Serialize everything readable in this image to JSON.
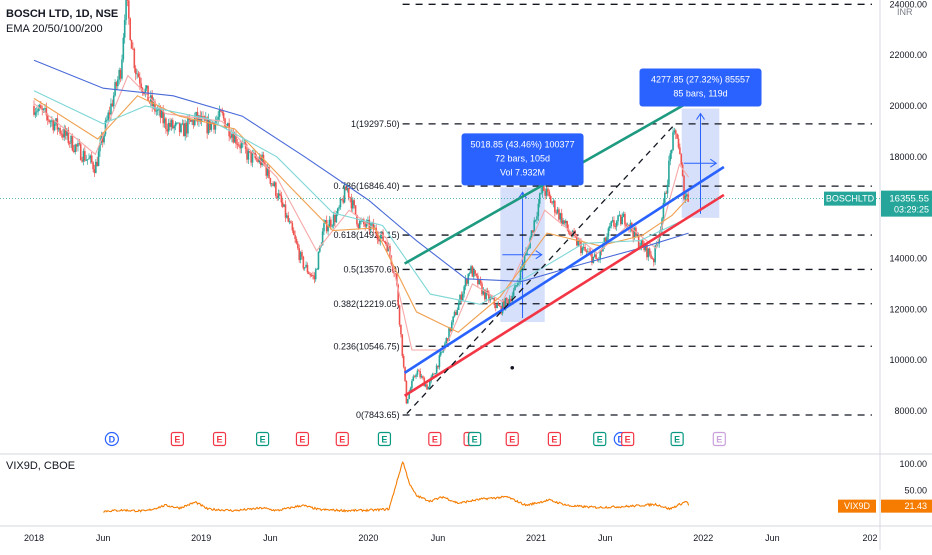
{
  "header": {
    "symbol_line": "BOSCH LTD, 1D, NSE",
    "ema_line": "EMA 20/50/100/200",
    "vix_line": "VIX9D, CBOE",
    "currency": "INR"
  },
  "colors": {
    "candle_up": "#26a69a",
    "candle_down": "#ef5350",
    "ema20": "#f7a8a8",
    "ema50": "#f0a050",
    "ema100": "#7fd6d6",
    "ema200": "#4a6ad8",
    "channel_upper": "#1d9a80",
    "channel_mid": "#2962ff",
    "channel_lower": "#f23645",
    "vix_line": "#f57c00",
    "measure_box": "#c8d6fa",
    "callout": "#2962ff"
  },
  "chart_data": [
    {
      "type": "line",
      "name": "price-panel",
      "title": "BOSCH LTD, 1D, NSE",
      "ylim": [
        7500,
        24000
      ],
      "y_ticks": [
        8000,
        10000,
        12000,
        14000,
        16000,
        18000,
        20000,
        22000,
        24000
      ],
      "y_tick_labels": [
        "8000.00",
        "10000.00",
        "12000.00",
        "14000.00",
        "16000.00",
        "18000.00",
        "20000.00",
        "22000.00",
        "24000.00"
      ],
      "x_range": [
        "2018-01-01",
        "2022-12-31"
      ],
      "x_ticks": [
        {
          "date": "2018-01-01",
          "label": "2018"
        },
        {
          "date": "2018-06-01",
          "label": "Jun"
        },
        {
          "date": "2019-01-01",
          "label": "2019"
        },
        {
          "date": "2019-06-01",
          "label": "Jun"
        },
        {
          "date": "2020-01-01",
          "label": "2020"
        },
        {
          "date": "2020-06-01",
          "label": "Jun"
        },
        {
          "date": "2021-01-01",
          "label": "2021"
        },
        {
          "date": "2021-06-01",
          "label": "Jun"
        },
        {
          "date": "2022-01-01",
          "label": "2022"
        },
        {
          "date": "2022-06-01",
          "label": "Jun"
        },
        {
          "date": "2022-12-31",
          "label": "202"
        }
      ],
      "price_path": [
        [
          "2018-01-01",
          20000
        ],
        [
          "2018-02-15",
          19300
        ],
        [
          "2018-04-01",
          18400
        ],
        [
          "2018-05-15",
          17600
        ],
        [
          "2018-06-15",
          19800
        ],
        [
          "2018-07-10",
          21500
        ],
        [
          "2018-07-20",
          24300
        ],
        [
          "2018-08-10",
          21500
        ],
        [
          "2018-09-10",
          20200
        ],
        [
          "2018-10-15",
          19300
        ],
        [
          "2018-11-20",
          19000
        ],
        [
          "2018-12-20",
          19500
        ],
        [
          "2019-01-15",
          19200
        ],
        [
          "2019-02-15",
          19600
        ],
        [
          "2019-03-15",
          18800
        ],
        [
          "2019-04-15",
          18000
        ],
        [
          "2019-05-15",
          17800
        ],
        [
          "2019-06-15",
          16600
        ],
        [
          "2019-07-15",
          15200
        ],
        [
          "2019-08-10",
          13800
        ],
        [
          "2019-09-05",
          13200
        ],
        [
          "2019-09-25",
          15200
        ],
        [
          "2019-10-25",
          15700
        ],
        [
          "2019-11-15",
          16800
        ],
        [
          "2019-12-10",
          15400
        ],
        [
          "2020-01-10",
          15200
        ],
        [
          "2020-02-10",
          14600
        ],
        [
          "2020-03-01",
          13300
        ],
        [
          "2020-03-24",
          8400
        ],
        [
          "2020-04-15",
          9600
        ],
        [
          "2020-05-10",
          8900
        ],
        [
          "2020-06-10",
          10300
        ],
        [
          "2020-07-10",
          11900
        ],
        [
          "2020-08-10",
          13600
        ],
        [
          "2020-09-10",
          12600
        ],
        [
          "2020-10-15",
          12000
        ],
        [
          "2020-11-15",
          12700
        ],
        [
          "2020-12-15",
          14500
        ],
        [
          "2021-01-15",
          16800
        ],
        [
          "2021-02-15",
          15900
        ],
        [
          "2021-03-15",
          15000
        ],
        [
          "2021-04-15",
          14300
        ],
        [
          "2021-05-15",
          13900
        ],
        [
          "2021-06-15",
          15300
        ],
        [
          "2021-07-15",
          15600
        ],
        [
          "2021-08-15",
          14600
        ],
        [
          "2021-09-15",
          14000
        ],
        [
          "2021-10-05",
          15800
        ],
        [
          "2021-10-25",
          18600
        ],
        [
          "2021-11-05",
          18900
        ],
        [
          "2021-11-20",
          16600
        ],
        [
          "2021-11-30",
          16355.55
        ]
      ],
      "ema_lines": [
        {
          "name": "EMA 20",
          "color_key": "ema20",
          "points": [
            [
              "2018-01-01",
              20100
            ],
            [
              "2018-05-15",
              18100
            ],
            [
              "2018-07-25",
              21200
            ],
            [
              "2018-10-15",
              19700
            ],
            [
              "2019-02-15",
              19400
            ],
            [
              "2019-06-15",
              17200
            ],
            [
              "2019-09-10",
              14300
            ],
            [
              "2019-11-20",
              15900
            ],
            [
              "2020-02-10",
              14800
            ],
            [
              "2020-04-05",
              10400
            ],
            [
              "2020-06-15",
              10400
            ],
            [
              "2020-08-15",
              13000
            ],
            [
              "2020-10-20",
              12300
            ],
            [
              "2021-01-20",
              15900
            ],
            [
              "2021-05-15",
              14200
            ],
            [
              "2021-07-20",
              15300
            ],
            [
              "2021-09-20",
              14400
            ],
            [
              "2021-11-10",
              17700
            ],
            [
              "2021-11-30",
              17200
            ]
          ]
        },
        {
          "name": "EMA 50",
          "color_key": "ema50",
          "points": [
            [
              "2018-01-01",
              20300
            ],
            [
              "2018-05-20",
              18700
            ],
            [
              "2018-08-15",
              20400
            ],
            [
              "2018-11-15",
              19600
            ],
            [
              "2019-03-15",
              19100
            ],
            [
              "2019-07-15",
              16800
            ],
            [
              "2019-10-15",
              15100
            ],
            [
              "2020-01-15",
              15200
            ],
            [
              "2020-04-15",
              11900
            ],
            [
              "2020-07-15",
              11100
            ],
            [
              "2020-10-15",
              12500
            ],
            [
              "2021-01-25",
              15000
            ],
            [
              "2021-05-20",
              14500
            ],
            [
              "2021-08-20",
              14900
            ],
            [
              "2021-10-25",
              15700
            ],
            [
              "2021-11-30",
              16400
            ]
          ]
        },
        {
          "name": "EMA 100",
          "color_key": "ema100",
          "points": [
            [
              "2018-01-01",
              20600
            ],
            [
              "2018-06-01",
              19300
            ],
            [
              "2018-09-01",
              20000
            ],
            [
              "2019-01-15",
              19500
            ],
            [
              "2019-06-15",
              18000
            ],
            [
              "2019-10-15",
              15800
            ],
            [
              "2020-02-01",
              15300
            ],
            [
              "2020-05-15",
              12600
            ],
            [
              "2020-09-01",
              12200
            ],
            [
              "2020-12-15",
              13300
            ],
            [
              "2021-04-15",
              14600
            ],
            [
              "2021-08-15",
              14700
            ],
            [
              "2021-11-30",
              15600
            ]
          ]
        },
        {
          "name": "EMA 200",
          "color_key": "ema200",
          "points": [
            [
              "2018-01-01",
              21800
            ],
            [
              "2018-06-01",
              20700
            ],
            [
              "2018-11-01",
              20400
            ],
            [
              "2019-04-01",
              19600
            ],
            [
              "2019-08-15",
              18000
            ],
            [
              "2020-01-01",
              16300
            ],
            [
              "2020-04-15",
              14700
            ],
            [
              "2020-08-01",
              13200
            ],
            [
              "2020-12-01",
              13100
            ],
            [
              "2021-04-15",
              13800
            ],
            [
              "2021-08-15",
              14400
            ],
            [
              "2021-11-30",
              15000
            ]
          ]
        }
      ],
      "fib_levels": [
        {
          "label": "1(19297.50)",
          "value": 19297.5
        },
        {
          "label": "0.786(16846.40)",
          "value": 16846.4
        },
        {
          "label": "0.618(14922.15)",
          "value": 14922.15
        },
        {
          "label": "0.5(13570.60)",
          "value": 13570.6
        },
        {
          "label": "0.382(12219.05)",
          "value": 12219.05
        },
        {
          "label": "0.236(10546.75)",
          "value": 10546.75
        },
        {
          "label": "0(7843.65)",
          "value": 7843.65
        }
      ],
      "fib_extension_top_value": 24000,
      "fib_x_range": [
        "2020-03-20",
        "2022-12-31"
      ],
      "channel_lines": [
        {
          "name": "upper",
          "color_key": "channel_upper",
          "from": [
            "2020-03-20",
            13800
          ],
          "to": [
            "2021-12-15",
            20300
          ]
        },
        {
          "name": "middle",
          "color_key": "channel_mid",
          "from": [
            "2020-03-20",
            9500
          ],
          "to": [
            "2022-02-15",
            17600
          ]
        },
        {
          "name": "lower",
          "color_key": "channel_lower",
          "from": [
            "2020-03-20",
            8600
          ],
          "to": [
            "2022-02-15",
            16500
          ]
        }
      ],
      "trend_dashed": {
        "from": [
          "2020-03-25",
          7900
        ],
        "to": [
          "2021-11-01",
          19300
        ]
      },
      "measures": [
        {
          "from": [
            "2020-10-15",
            11500
          ],
          "to": [
            "2021-01-20",
            16800
          ],
          "text": [
            "5018.85 (43.46%) 100377",
            "72 bars, 105d",
            "Vol 7.932M"
          ]
        },
        {
          "from": [
            "2021-11-15",
            15600
          ],
          "to": [
            "2022-02-05",
            19900
          ],
          "text": [
            "4277.85 (27.32%) 85557",
            "85 bars, 119d"
          ]
        }
      ],
      "marker_dot": [
        "2020-11-10",
        9700
      ],
      "last_price": 16355.55,
      "last_price_label": "16355.55",
      "countdown": "03:29:25",
      "symbol_tag": "BOSCHLTD",
      "events": [
        {
          "date": "2018-06-20",
          "letter": "D"
        },
        {
          "date": "2018-11-10",
          "letter": "E"
        },
        {
          "date": "2019-02-10",
          "letter": "E"
        },
        {
          "date": "2019-05-15",
          "letter": "E"
        },
        {
          "date": "2019-08-10",
          "letter": "E"
        },
        {
          "date": "2019-11-05",
          "letter": "E"
        },
        {
          "date": "2020-02-05",
          "letter": "E"
        },
        {
          "date": "2020-05-25",
          "letter": "E"
        },
        {
          "date": "2020-08-10",
          "letter": "E"
        },
        {
          "date": "2020-08-20",
          "letter": "E"
        },
        {
          "date": "2020-11-10",
          "letter": "E"
        },
        {
          "date": "2021-02-10",
          "letter": "E"
        },
        {
          "date": "2021-05-20",
          "letter": "E"
        },
        {
          "date": "2021-07-05",
          "letter": "D"
        },
        {
          "date": "2021-07-20",
          "letter": "E"
        },
        {
          "date": "2021-11-05",
          "letter": "E"
        },
        {
          "date": "2022-02-05",
          "letter": "E"
        }
      ]
    },
    {
      "type": "line",
      "name": "VIX9D, CBOE",
      "ylim": [
        0,
        115
      ],
      "y_ticks": [
        50,
        100
      ],
      "y_tick_labels": [
        "50.00",
        "100.00"
      ],
      "last_value": 21.43,
      "last_value_label": "21.43",
      "tag": "VIX9D",
      "points": [
        [
          "2018-06-01",
          11
        ],
        [
          "2018-07-15",
          13
        ],
        [
          "2018-09-01",
          11
        ],
        [
          "2018-10-15",
          22
        ],
        [
          "2018-11-15",
          17
        ],
        [
          "2018-12-20",
          28
        ],
        [
          "2019-01-15",
          15
        ],
        [
          "2019-03-15",
          12
        ],
        [
          "2019-05-15",
          17
        ],
        [
          "2019-06-15",
          12
        ],
        [
          "2019-08-10",
          22
        ],
        [
          "2019-09-15",
          14
        ],
        [
          "2019-11-15",
          12
        ],
        [
          "2020-01-10",
          13
        ],
        [
          "2020-02-15",
          15
        ],
        [
          "2020-03-16",
          105
        ],
        [
          "2020-04-01",
          60
        ],
        [
          "2020-04-15",
          40
        ],
        [
          "2020-05-15",
          30
        ],
        [
          "2020-06-12",
          38
        ],
        [
          "2020-07-15",
          26
        ],
        [
          "2020-09-05",
          34
        ],
        [
          "2020-10-30",
          38
        ],
        [
          "2020-12-10",
          22
        ],
        [
          "2021-01-29",
          32
        ],
        [
          "2021-03-15",
          21
        ],
        [
          "2021-05-15",
          18
        ],
        [
          "2021-07-20",
          20
        ],
        [
          "2021-09-20",
          24
        ],
        [
          "2021-10-20",
          15
        ],
        [
          "2021-11-26",
          30
        ],
        [
          "2021-11-30",
          21.43
        ]
      ]
    }
  ]
}
